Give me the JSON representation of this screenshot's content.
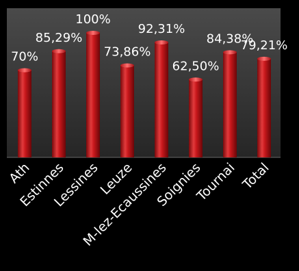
{
  "chart_data": {
    "type": "bar",
    "categories": [
      "Ath",
      "Estinnes",
      "Lessines",
      "Leuze",
      "M-lez-Ecaussines",
      "Soignies",
      "Tournai",
      "Total"
    ],
    "values": [
      70,
      85.29,
      100,
      73.86,
      92.31,
      62.5,
      84.38,
      79.21
    ],
    "value_labels": [
      "70%",
      "85,29%",
      "100%",
      "73,86%",
      "92,31%",
      "62,50%",
      "84,38%",
      "79,21%"
    ],
    "title": "",
    "xlabel": "",
    "ylabel": "",
    "ylim": [
      0,
      100
    ],
    "grid": false,
    "legend": "none",
    "colors": {
      "bar": "#c8181c",
      "bar_light": "#f05050",
      "bar_dark": "#7a0a0c",
      "plot_bg_top": "#4a4a4a",
      "plot_bg_bottom": "#2a2a2a",
      "text": "#ffffff"
    }
  }
}
